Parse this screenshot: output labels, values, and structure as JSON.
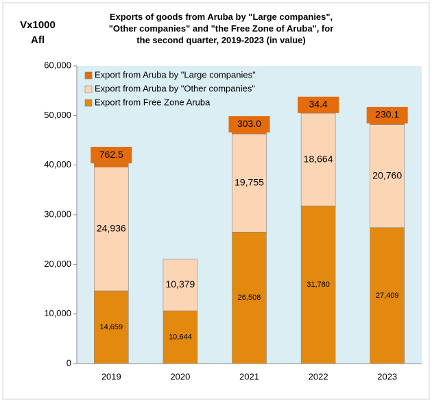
{
  "chart_data": {
    "type": "stacked_bar",
    "title": "Exports of goods from Aruba by \"Large companies\", \"Other companies\" and \"the Free Zone of Aruba\", for the second quarter, 2019-2023 (in value)",
    "y_label": "Vx1000 Afl",
    "categories": [
      "2019",
      "2020",
      "2021",
      "2022",
      "2023"
    ],
    "series": [
      {
        "name": "Export from Aruba by \"Large companies\"",
        "color": "#e46c0a",
        "values": [
          762.5,
          null,
          303.0,
          34.4,
          230.1
        ],
        "value_labels": [
          "762.5",
          null,
          "303.0",
          "34.4",
          "230.1"
        ]
      },
      {
        "name": "Export from Aruba by \"Other companies\"",
        "color": "#fcd5b4",
        "values": [
          24936,
          10379,
          19755,
          18664,
          20760
        ],
        "value_labels": [
          "24,936",
          "10,379",
          "19,755",
          "18,664",
          "20,760"
        ]
      },
      {
        "name": "Export from Free Zone Aruba",
        "color": "#e3890f",
        "values": [
          14659,
          10644,
          26508,
          31780,
          27409
        ],
        "value_labels": [
          "14,659",
          "10,644",
          "26,508",
          "31,780",
          "27,409"
        ]
      }
    ],
    "ylim": [
      0,
      60000
    ],
    "yticks": [
      {
        "value": 0,
        "label": "0"
      },
      {
        "value": 10000,
        "label": "10,000"
      },
      {
        "value": 20000,
        "label": "20,000"
      },
      {
        "value": 30000,
        "label": "30,000"
      },
      {
        "value": 40000,
        "label": "40,000"
      },
      {
        "value": 50000,
        "label": "50,000"
      },
      {
        "value": 60000,
        "label": "60,000"
      }
    ],
    "legend": "upper left",
    "background": "#daeef3"
  }
}
